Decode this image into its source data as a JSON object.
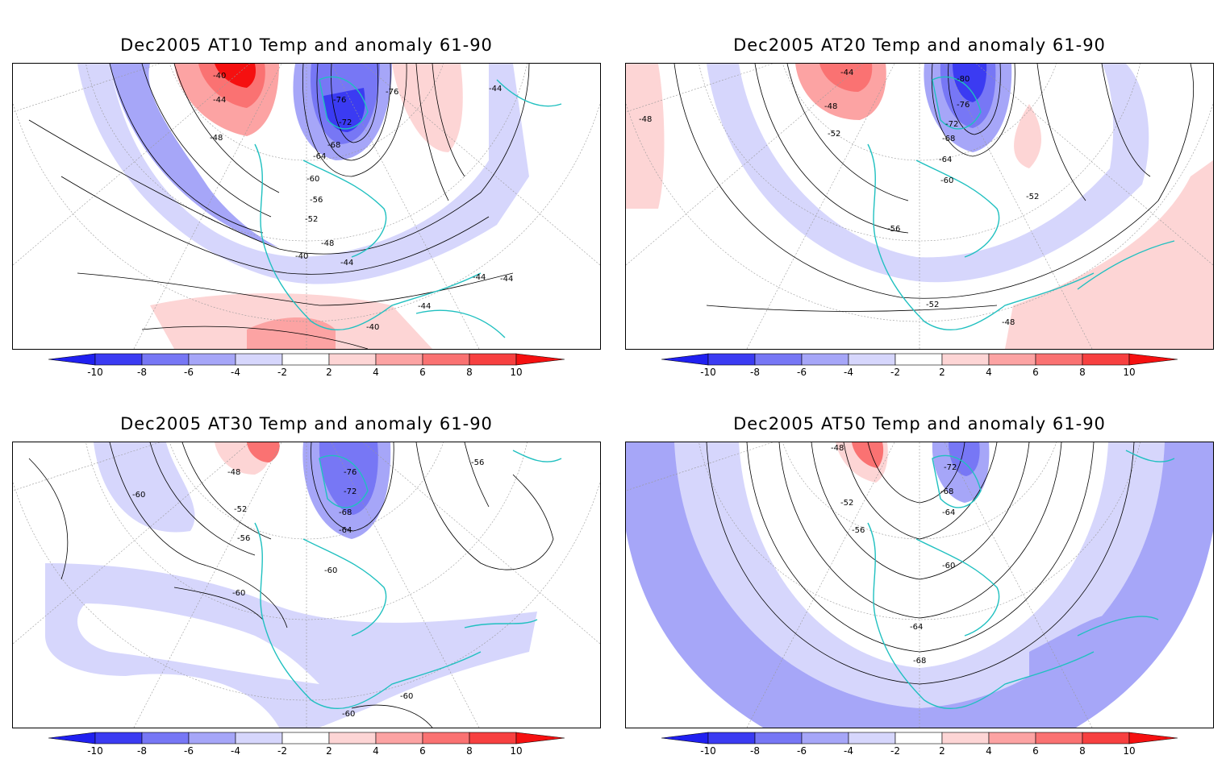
{
  "panels": [
    {
      "title": "Dec2005 AT10 Temp and anomaly 61-90",
      "contour_labels": [
        "-40",
        "-44",
        "-48",
        "-76",
        "-76",
        "-72",
        "-68",
        "-64",
        "-60",
        "-56",
        "-52",
        "-48",
        "-44",
        "-40",
        "-44",
        "-44",
        "-44",
        "-40",
        "-44"
      ]
    },
    {
      "title": "Dec2005 AT20 Temp and anomaly 61-90",
      "contour_labels": [
        "-44",
        "-48",
        "-52",
        "-80",
        "-76",
        "-72",
        "-68",
        "-64",
        "-60",
        "-56",
        "-52",
        "-52",
        "-48",
        "-48"
      ]
    },
    {
      "title": "Dec2005 AT30 Temp and anomaly 61-90",
      "contour_labels": [
        "-48",
        "-52",
        "-56",
        "-76",
        "-72",
        "-68",
        "-64",
        "-60",
        "-60",
        "-60",
        "-56",
        "-60",
        "-60"
      ]
    },
    {
      "title": "Dec2005 AT50 Temp and anomaly 61-90",
      "contour_labels": [
        "-48",
        "-52",
        "-56",
        "-72",
        "-68",
        "-64",
        "-60",
        "-64",
        "-68"
      ]
    }
  ],
  "colorbar": {
    "ticks": [
      "-10",
      "-8",
      "-6",
      "-4",
      "-2",
      "2",
      "4",
      "6",
      "8",
      "10"
    ],
    "colors": {
      "m10": "#2020f0",
      "m8": "#3b3bf2",
      "m6": "#7777f5",
      "m4": "#a6a6f8",
      "m2": "#d6d6fc",
      "zero": "#ffffff",
      "p2": "#fdd5d5",
      "p4": "#fca3a3",
      "p6": "#fa7272",
      "p8": "#f74040",
      "p10": "#f51010"
    }
  },
  "colors": {
    "coast": "#20c0c0",
    "contour": "#000000",
    "grid": "#999999"
  }
}
